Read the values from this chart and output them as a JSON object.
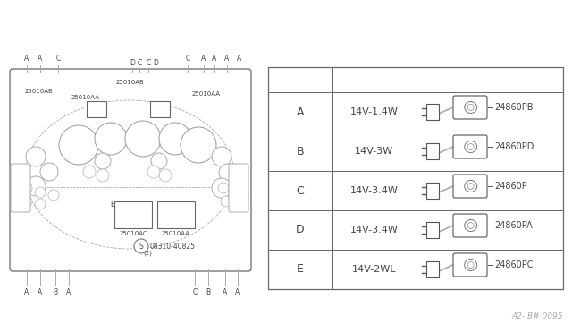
{
  "table_rows": [
    {
      "letter": "A",
      "spec": "14V-1.4W",
      "part": "24860PB"
    },
    {
      "letter": "B",
      "spec": "14V-3W",
      "part": "24860PD"
    },
    {
      "letter": "C",
      "spec": "14V-3.4W",
      "part": "24860P"
    },
    {
      "letter": "D",
      "spec": "14V-3.4W",
      "part": "24860PA"
    },
    {
      "letter": "E",
      "spec": "14V-2WL",
      "part": "24860PC"
    }
  ],
  "watermark": "A2- B# 0095",
  "diagram_ref": "08310-40825",
  "diagram_ref2": "(2)"
}
